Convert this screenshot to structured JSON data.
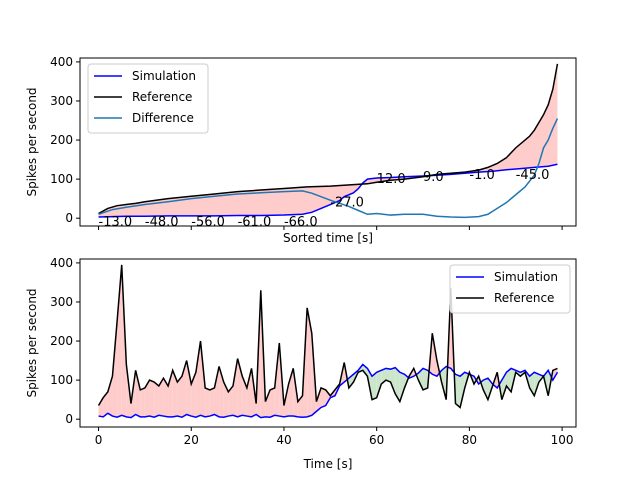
{
  "chart_data": [
    {
      "type": "line",
      "xlabel": "Sorted time [s]",
      "ylabel": "Spikes per second",
      "x_range": [
        -4,
        103
      ],
      "ylim": [
        -20,
        410
      ],
      "yticks": [
        0,
        100,
        200,
        300,
        400
      ],
      "xticks": [
        0,
        20,
        40,
        60,
        80,
        100
      ],
      "xtick_labels_shown": false,
      "legend": "top-left",
      "grid": false,
      "series": [
        {
          "name": "Simulation",
          "color": "#0000ff",
          "x": [
            0,
            3,
            6,
            10,
            15,
            20,
            25,
            30,
            35,
            40,
            44,
            46,
            48,
            50,
            52,
            53,
            55,
            56,
            57,
            58,
            60,
            63,
            66,
            70,
            73,
            76,
            79,
            82,
            85,
            88,
            91,
            94,
            97,
            99
          ],
          "y": [
            3,
            4,
            5,
            5,
            6,
            6,
            6,
            7,
            7,
            8,
            10,
            15,
            25,
            35,
            45,
            55,
            65,
            75,
            90,
            100,
            103,
            104,
            106,
            108,
            110,
            112,
            115,
            118,
            120,
            124,
            127,
            130,
            133,
            138
          ]
        },
        {
          "name": "Reference",
          "color": "#000000",
          "x": [
            0,
            2,
            4,
            6,
            8,
            10,
            15,
            20,
            25,
            30,
            35,
            40,
            45,
            50,
            55,
            58,
            60,
            63,
            66,
            70,
            73,
            76,
            79,
            82,
            84,
            86,
            88,
            90,
            92,
            93,
            94,
            95,
            96,
            97,
            98,
            99
          ],
          "y": [
            12,
            25,
            32,
            35,
            38,
            42,
            50,
            56,
            62,
            68,
            72,
            76,
            80,
            82,
            86,
            88,
            92,
            97,
            100,
            106,
            112,
            115,
            118,
            123,
            130,
            140,
            155,
            180,
            200,
            210,
            225,
            245,
            265,
            290,
            330,
            395
          ]
        },
        {
          "name": "Difference",
          "color": "#1f77b4",
          "x": [
            0,
            3,
            6,
            10,
            15,
            20,
            25,
            30,
            35,
            40,
            44,
            46,
            48,
            50,
            52,
            54,
            56,
            58,
            60,
            63,
            66,
            70,
            73,
            76,
            79,
            82,
            84,
            86,
            88,
            90,
            92,
            94,
            95,
            96,
            97,
            98,
            99
          ],
          "y": [
            10,
            22,
            28,
            35,
            42,
            50,
            56,
            62,
            65,
            68,
            70,
            64,
            55,
            46,
            38,
            30,
            20,
            10,
            12,
            8,
            10,
            10,
            5,
            3,
            2,
            4,
            10,
            25,
            40,
            60,
            80,
            110,
            140,
            180,
            200,
            230,
            255
          ]
        }
      ],
      "annotations": [
        {
          "x": 0,
          "y": -20,
          "text": "-13.0"
        },
        {
          "x": 10,
          "y": -20,
          "text": "-48.0"
        },
        {
          "x": 20,
          "y": -20,
          "text": "-56.0"
        },
        {
          "x": 30,
          "y": -20,
          "text": "-61.0"
        },
        {
          "x": 40,
          "y": -20,
          "text": "-66.0"
        },
        {
          "x": 50,
          "y": 30,
          "text": "-27.0"
        },
        {
          "x": 60,
          "y": 90,
          "text": "12.0"
        },
        {
          "x": 70,
          "y": 95,
          "text": "9.0"
        },
        {
          "x": 80,
          "y": 100,
          "text": "-1.0"
        },
        {
          "x": 90,
          "y": 100,
          "text": "-45.0"
        }
      ],
      "fill": {
        "between": [
          "Simulation",
          "Reference"
        ],
        "color": "#ffcccc"
      }
    },
    {
      "type": "line",
      "xlabel": "Time [s]",
      "ylabel": "Spikes per second",
      "x_range": [
        -4,
        103
      ],
      "ylim": [
        -20,
        410
      ],
      "yticks": [
        0,
        100,
        200,
        300,
        400
      ],
      "xticks": [
        0,
        20,
        40,
        60,
        80,
        100
      ],
      "legend": "top-right",
      "grid": false,
      "x": [
        0,
        1,
        2,
        3,
        4,
        5,
        6,
        7,
        8,
        9,
        10,
        11,
        12,
        13,
        14,
        15,
        16,
        17,
        18,
        19,
        20,
        21,
        22,
        23,
        24,
        25,
        26,
        27,
        28,
        29,
        30,
        31,
        32,
        33,
        34,
        35,
        36,
        37,
        38,
        39,
        40,
        41,
        42,
        43,
        44,
        45,
        46,
        47,
        48,
        49,
        50,
        51,
        52,
        53,
        54,
        55,
        56,
        57,
        58,
        59,
        60,
        61,
        62,
        63,
        64,
        65,
        66,
        67,
        68,
        69,
        70,
        71,
        72,
        73,
        74,
        75,
        76,
        77,
        78,
        79,
        80,
        81,
        82,
        83,
        84,
        85,
        86,
        87,
        88,
        89,
        90,
        91,
        92,
        93,
        94,
        95,
        96,
        97,
        98,
        99
      ],
      "series": [
        {
          "name": "Simulation",
          "color": "#0000ff",
          "values": [
            8,
            6,
            15,
            8,
            5,
            10,
            6,
            4,
            12,
            6,
            6,
            8,
            5,
            10,
            8,
            6,
            6,
            8,
            5,
            12,
            8,
            5,
            10,
            6,
            8,
            12,
            6,
            5,
            8,
            10,
            6,
            10,
            8,
            6,
            12,
            4,
            6,
            5,
            10,
            8,
            6,
            8,
            8,
            6,
            5,
            6,
            10,
            20,
            30,
            35,
            55,
            60,
            85,
            95,
            105,
            115,
            125,
            140,
            130,
            110,
            120,
            125,
            130,
            128,
            132,
            120,
            115,
            105,
            110,
            118,
            130,
            125,
            115,
            110,
            125,
            135,
            130,
            115,
            110,
            120,
            115,
            110,
            90,
            100,
            105,
            90,
            80,
            100,
            120,
            130,
            125,
            120,
            125,
            110,
            120,
            115,
            110,
            125,
            100,
            120
          ]
        },
        {
          "name": "Reference",
          "color": "#000000",
          "values": [
            35,
            55,
            70,
            110,
            250,
            395,
            140,
            40,
            125,
            75,
            80,
            100,
            95,
            85,
            105,
            85,
            125,
            95,
            110,
            150,
            90,
            120,
            200,
            80,
            75,
            80,
            135,
            95,
            70,
            85,
            155,
            110,
            80,
            130,
            40,
            330,
            45,
            75,
            80,
            195,
            35,
            90,
            130,
            45,
            60,
            285,
            220,
            45,
            80,
            75,
            60,
            75,
            90,
            145,
            80,
            95,
            120,
            125,
            110,
            50,
            55,
            90,
            100,
            95,
            65,
            45,
            80,
            110,
            130,
            100,
            75,
            80,
            220,
            150,
            95,
            50,
            335,
            40,
            30,
            80,
            120,
            90,
            110,
            75,
            50,
            85,
            120,
            50,
            85,
            70,
            120,
            110,
            120,
            80,
            60,
            95,
            110,
            60,
            125,
            130
          ]
        }
      ],
      "fill": {
        "positive_color": "#ffcccc",
        "negative_color": "#cce6cc"
      }
    }
  ]
}
